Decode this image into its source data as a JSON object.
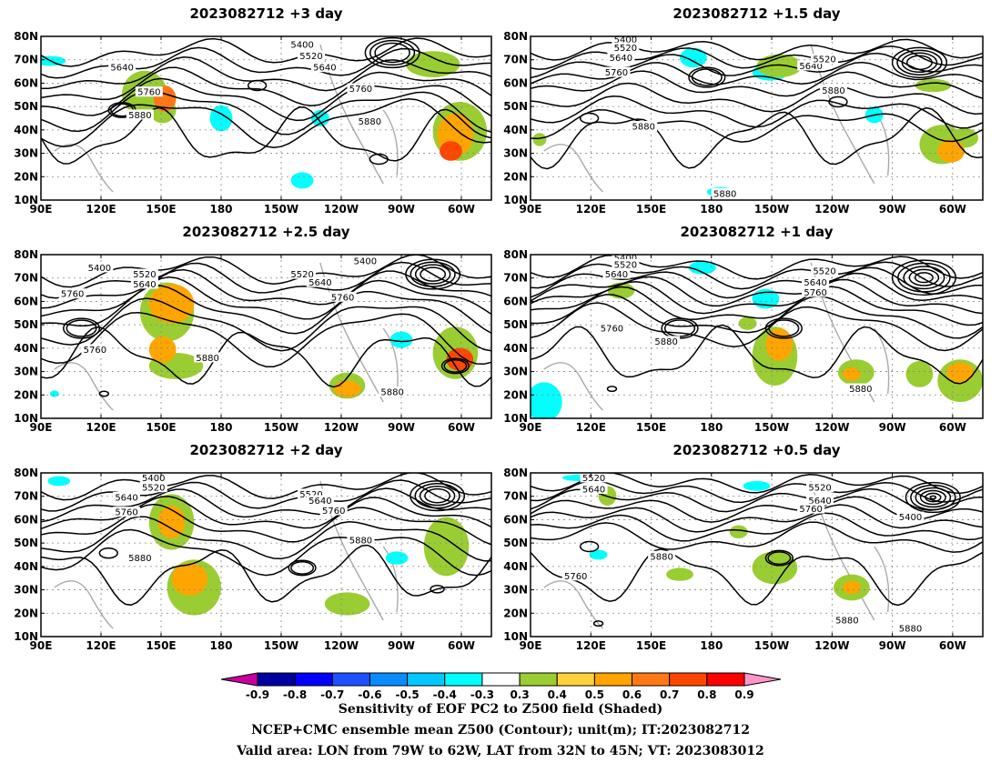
{
  "panels": [
    {
      "title": "2023082712  +3 day",
      "contour_labels": [
        "5400",
        "5520",
        "5640",
        "5640",
        "5760",
        "5760",
        "5880",
        "5880"
      ]
    },
    {
      "title": "2023082712  +1.5 day",
      "contour_labels": [
        "5400",
        "5520",
        "5640",
        "5640",
        "5520",
        "5760",
        "5880",
        "5880",
        "5880"
      ]
    },
    {
      "title": "2023082712  +2.5 day",
      "contour_labels": [
        "5400",
        "5400",
        "5520",
        "5640",
        "5520",
        "5640",
        "5760",
        "5760",
        "5760",
        "5880",
        "5880"
      ]
    },
    {
      "title": "2023082712  +1 day",
      "contour_labels": [
        "5400",
        "5520",
        "5640",
        "5520",
        "5640",
        "5760",
        "5760",
        "5880",
        "5880"
      ]
    },
    {
      "title": "2023082712  +2 day",
      "contour_labels": [
        "5400",
        "5520",
        "5640",
        "5760",
        "5520",
        "5640",
        "5760",
        "5880",
        "5880"
      ]
    },
    {
      "title": "2023082712  +0.5 day",
      "contour_labels": [
        "5520",
        "5640",
        "5520",
        "5640",
        "5760",
        "5400",
        "5880",
        "5760",
        "5880",
        "5880"
      ]
    }
  ],
  "axes": {
    "lon_ticks": [
      "90E",
      "120E",
      "150E",
      "180",
      "150W",
      "120W",
      "90W",
      "60W"
    ],
    "lat_ticks": [
      "10N",
      "20N",
      "30N",
      "40N",
      "50N",
      "60N",
      "70N",
      "80N"
    ]
  },
  "colorbar": {
    "ticks": [
      "-0.9",
      "-0.8",
      "-0.7",
      "-0.6",
      "-0.5",
      "-0.4",
      "-0.3",
      "0.3",
      "0.4",
      "0.5",
      "0.6",
      "0.7",
      "0.8",
      "0.9"
    ],
    "colors": [
      "#c8009e",
      "#0000a0",
      "#0000ff",
      "#1e50ff",
      "#0a8cff",
      "#00c8ff",
      "#00ffff",
      "#ffffff",
      "#9acd32",
      "#ffd23c",
      "#ffa500",
      "#ff7814",
      "#ff4600",
      "#ff0000",
      "#ff96c8"
    ]
  },
  "footer": {
    "line1": "Sensitivity of EOF PC2 to Z500 field (Shaded)",
    "line2": "NCEP+CMC ensemble mean Z500 (Contour); unit(m); IT:2023082712",
    "line3": "Valid area: LON from 79W to 62W, LAT from 32N to 45N; VT: 2023083012"
  }
}
